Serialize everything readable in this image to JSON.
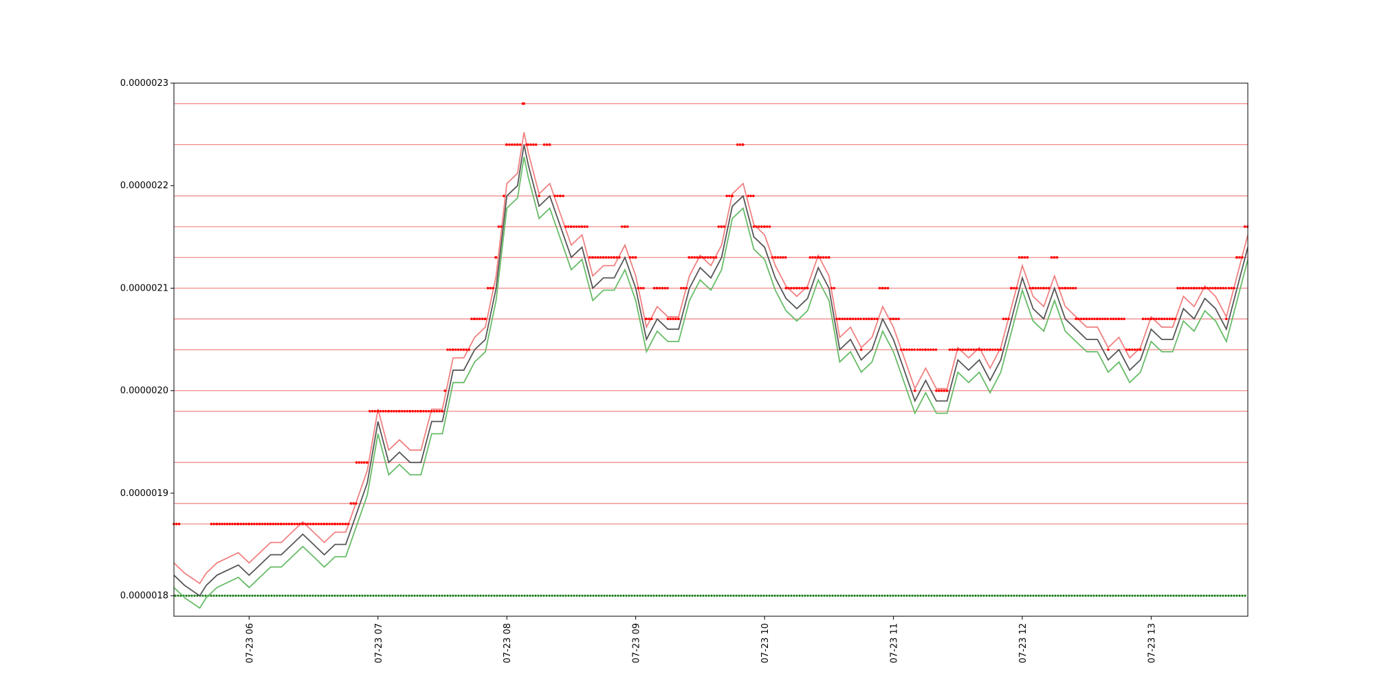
{
  "chart_data": {
    "type": "line",
    "title": "",
    "xlabel": "",
    "ylabel": "",
    "x_range": [
      "07-23 05:25",
      "07-23 13:45"
    ],
    "ylim": [
      1.78e-06,
      2.3e-06
    ],
    "y_ticks": [
      "0.0000018",
      "0.0000019",
      "0.0000020",
      "0.0000021",
      "0.0000022",
      "0.0000023"
    ],
    "x_ticks": [
      "07-23 06",
      "07-23 07",
      "07-23 08",
      "07-23 09",
      "07-23 10",
      "07-23 11",
      "07-23 12",
      "07-23 13"
    ],
    "grid": false,
    "legend": "none",
    "colors": {
      "resistance_lines": "#f08080",
      "high_series": "#f08080",
      "low_series": "#66bb66",
      "close_series": "#555555",
      "red_dots": "#ff0000",
      "green_dots": "#1a7a1a"
    },
    "horizontal_levels": [
      1.87e-06,
      1.89e-06,
      1.93e-06,
      1.98e-06,
      2e-06,
      2.04e-06,
      2.07e-06,
      2.1e-06,
      2.13e-06,
      2.16e-06,
      2.19e-06,
      2.24e-06,
      2.28e-06
    ],
    "green_dot_level": 1.8e-06,
    "series": [
      {
        "role": "close",
        "points": [
          [
            "05:25",
            1.82e-06
          ],
          [
            "05:30",
            1.81e-06
          ],
          [
            "05:37",
            1.8e-06
          ],
          [
            "05:40",
            1.81e-06
          ],
          [
            "05:45",
            1.82e-06
          ],
          [
            "05:55",
            1.83e-06
          ],
          [
            "06:00",
            1.82e-06
          ],
          [
            "06:05",
            1.83e-06
          ],
          [
            "06:10",
            1.84e-06
          ],
          [
            "06:15",
            1.84e-06
          ],
          [
            "06:20",
            1.85e-06
          ],
          [
            "06:25",
            1.86e-06
          ],
          [
            "06:30",
            1.85e-06
          ],
          [
            "06:35",
            1.84e-06
          ],
          [
            "06:40",
            1.85e-06
          ],
          [
            "06:45",
            1.85e-06
          ],
          [
            "06:50",
            1.88e-06
          ],
          [
            "06:55",
            1.91e-06
          ],
          [
            "07:00",
            1.97e-06
          ],
          [
            "07:05",
            1.93e-06
          ],
          [
            "07:10",
            1.94e-06
          ],
          [
            "07:15",
            1.93e-06
          ],
          [
            "07:20",
            1.93e-06
          ],
          [
            "07:25",
            1.97e-06
          ],
          [
            "07:30",
            1.97e-06
          ],
          [
            "07:35",
            2.02e-06
          ],
          [
            "07:40",
            2.02e-06
          ],
          [
            "07:45",
            2.04e-06
          ],
          [
            "07:50",
            2.05e-06
          ],
          [
            "07:55",
            2.1e-06
          ],
          [
            "08:00",
            2.19e-06
          ],
          [
            "08:05",
            2.2e-06
          ],
          [
            "08:08",
            2.24e-06
          ],
          [
            "08:10",
            2.22e-06
          ],
          [
            "08:15",
            2.18e-06
          ],
          [
            "08:20",
            2.19e-06
          ],
          [
            "08:25",
            2.16e-06
          ],
          [
            "08:30",
            2.13e-06
          ],
          [
            "08:35",
            2.14e-06
          ],
          [
            "08:40",
            2.1e-06
          ],
          [
            "08:45",
            2.11e-06
          ],
          [
            "08:50",
            2.11e-06
          ],
          [
            "08:55",
            2.13e-06
          ],
          [
            "09:00",
            2.1e-06
          ],
          [
            "09:05",
            2.05e-06
          ],
          [
            "09:10",
            2.07e-06
          ],
          [
            "09:15",
            2.06e-06
          ],
          [
            "09:20",
            2.06e-06
          ],
          [
            "09:25",
            2.1e-06
          ],
          [
            "09:30",
            2.12e-06
          ],
          [
            "09:35",
            2.11e-06
          ],
          [
            "09:40",
            2.13e-06
          ],
          [
            "09:45",
            2.18e-06
          ],
          [
            "09:50",
            2.19e-06
          ],
          [
            "09:55",
            2.15e-06
          ],
          [
            "10:00",
            2.14e-06
          ],
          [
            "10:05",
            2.11e-06
          ],
          [
            "10:10",
            2.09e-06
          ],
          [
            "10:15",
            2.08e-06
          ],
          [
            "10:20",
            2.09e-06
          ],
          [
            "10:25",
            2.12e-06
          ],
          [
            "10:30",
            2.1e-06
          ],
          [
            "10:35",
            2.04e-06
          ],
          [
            "10:40",
            2.05e-06
          ],
          [
            "10:45",
            2.03e-06
          ],
          [
            "10:50",
            2.04e-06
          ],
          [
            "10:55",
            2.07e-06
          ],
          [
            "11:00",
            2.05e-06
          ],
          [
            "11:05",
            2.02e-06
          ],
          [
            "11:10",
            1.99e-06
          ],
          [
            "11:15",
            2.01e-06
          ],
          [
            "11:20",
            1.99e-06
          ],
          [
            "11:25",
            1.99e-06
          ],
          [
            "11:30",
            2.03e-06
          ],
          [
            "11:35",
            2.02e-06
          ],
          [
            "11:40",
            2.03e-06
          ],
          [
            "11:45",
            2.01e-06
          ],
          [
            "11:50",
            2.03e-06
          ],
          [
            "11:55",
            2.07e-06
          ],
          [
            "12:00",
            2.11e-06
          ],
          [
            "12:05",
            2.08e-06
          ],
          [
            "12:10",
            2.07e-06
          ],
          [
            "12:15",
            2.1e-06
          ],
          [
            "12:20",
            2.07e-06
          ],
          [
            "12:25",
            2.06e-06
          ],
          [
            "12:30",
            2.05e-06
          ],
          [
            "12:35",
            2.05e-06
          ],
          [
            "12:40",
            2.03e-06
          ],
          [
            "12:45",
            2.04e-06
          ],
          [
            "12:50",
            2.02e-06
          ],
          [
            "12:55",
            2.03e-06
          ],
          [
            "13:00",
            2.06e-06
          ],
          [
            "13:05",
            2.05e-06
          ],
          [
            "13:10",
            2.05e-06
          ],
          [
            "13:15",
            2.08e-06
          ],
          [
            "13:20",
            2.07e-06
          ],
          [
            "13:25",
            2.09e-06
          ],
          [
            "13:30",
            2.08e-06
          ],
          [
            "13:35",
            2.06e-06
          ],
          [
            "13:40",
            2.1e-06
          ],
          [
            "13:45",
            2.14e-06
          ]
        ]
      }
    ],
    "series_offsets": {
      "high": 1.2e-08,
      "low": -1.2e-08
    }
  }
}
